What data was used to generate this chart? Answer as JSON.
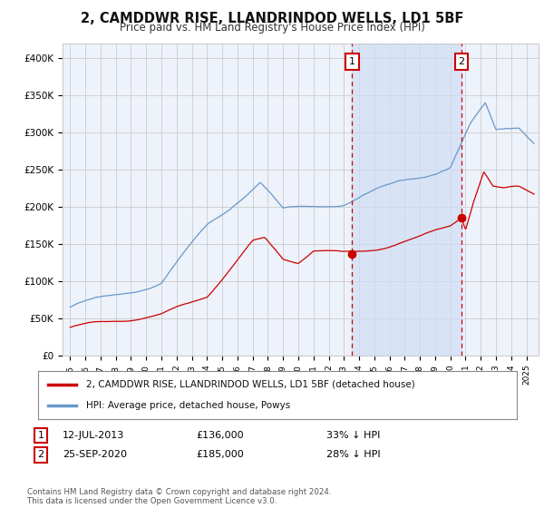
{
  "title": "2, CAMDDWR RISE, LLANDRINDOD WELLS, LD1 5BF",
  "subtitle": "Price paid vs. HM Land Registry's House Price Index (HPI)",
  "legend_label_red": "2, CAMDDWR RISE, LLANDRINDOD WELLS, LD1 5BF (detached house)",
  "legend_label_blue": "HPI: Average price, detached house, Powys",
  "annotation1_date": "12-JUL-2013",
  "annotation1_price": "£136,000",
  "annotation1_hpi": "33% ↓ HPI",
  "annotation1_year": 2013.54,
  "annotation1_value_red": 136000,
  "annotation2_date": "25-SEP-2020",
  "annotation2_price": "£185,000",
  "annotation2_hpi": "28% ↓ HPI",
  "annotation2_year": 2020.73,
  "annotation2_value_red": 185000,
  "grid_color": "#cccccc",
  "background_color": "#ffffff",
  "plot_bg_color": "#eef2fa",
  "shade_color": "#d0ddf5",
  "red_color": "#cc0000",
  "blue_color": "#6699cc",
  "dashed_color": "#cc0000",
  "footer_text": "Contains HM Land Registry data © Crown copyright and database right 2024.\nThis data is licensed under the Open Government Licence v3.0.",
  "ylim": [
    0,
    420000
  ],
  "yticks": [
    0,
    50000,
    100000,
    150000,
    200000,
    250000,
    300000,
    350000,
    400000
  ],
  "ytick_labels": [
    "£0",
    "£50K",
    "£100K",
    "£150K",
    "£200K",
    "£250K",
    "£300K",
    "£350K",
    "£400K"
  ],
  "xlim_start": 1994.5,
  "xlim_end": 2025.8,
  "xticks": [
    1995,
    1996,
    1997,
    1998,
    1999,
    2000,
    2001,
    2002,
    2003,
    2004,
    2005,
    2006,
    2007,
    2008,
    2009,
    2010,
    2011,
    2012,
    2013,
    2014,
    2015,
    2016,
    2017,
    2018,
    2019,
    2020,
    2021,
    2022,
    2023,
    2024,
    2025
  ]
}
